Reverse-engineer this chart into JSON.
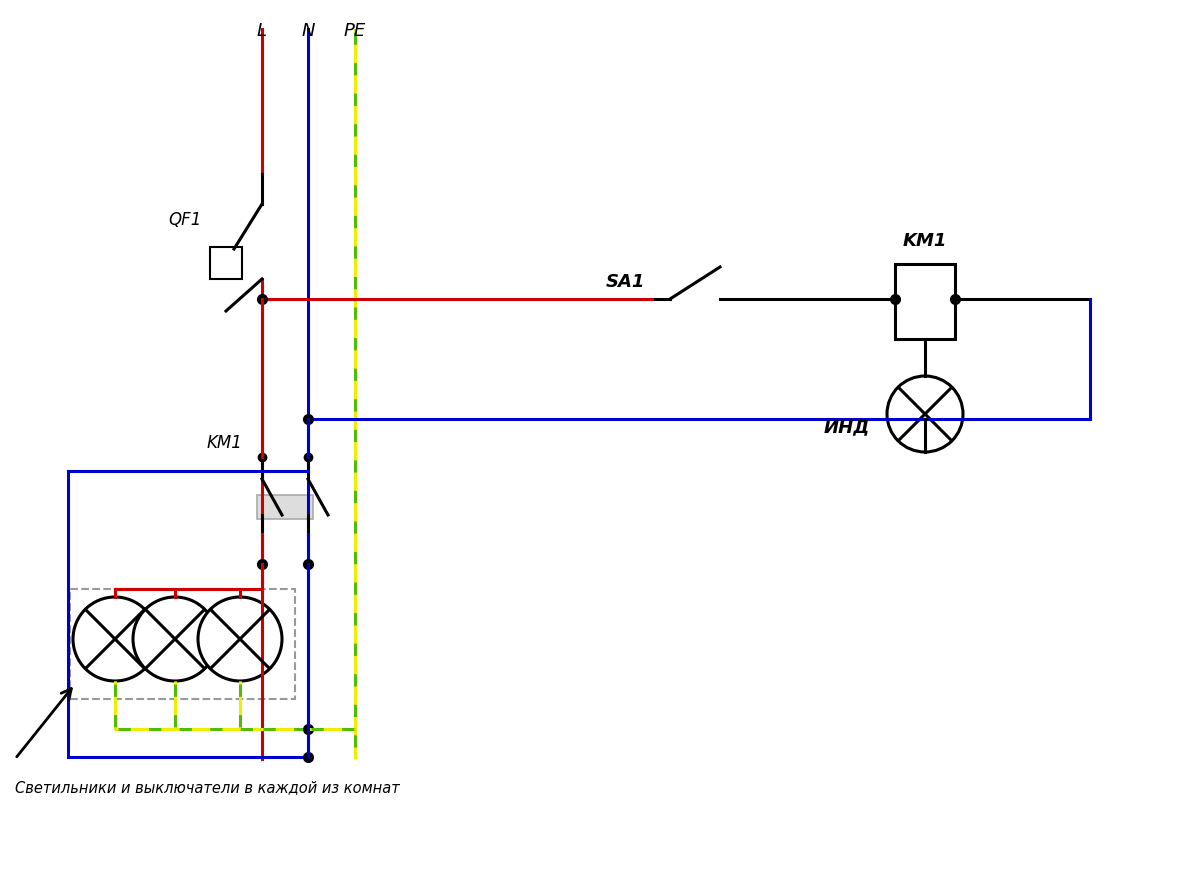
{
  "bg_color": "#ffffff",
  "red": "#cc0000",
  "blue": "#0000cc",
  "green": "#55bb00",
  "yellow": "#eeee00",
  "black": "#000000",
  "gray": "#aaaaaa",
  "lw": 2.2,
  "lw_thin": 1.5,
  "label_L": "L",
  "label_N": "N",
  "label_PE": "PE",
  "label_QF1": "QF1",
  "label_SA1": "SA1",
  "label_KM1_right": "KM1",
  "label_KM1_left": "KM1",
  "label_IND": "ИНД",
  "label_bottom": "Светильники и выключатели в каждой из комнат"
}
